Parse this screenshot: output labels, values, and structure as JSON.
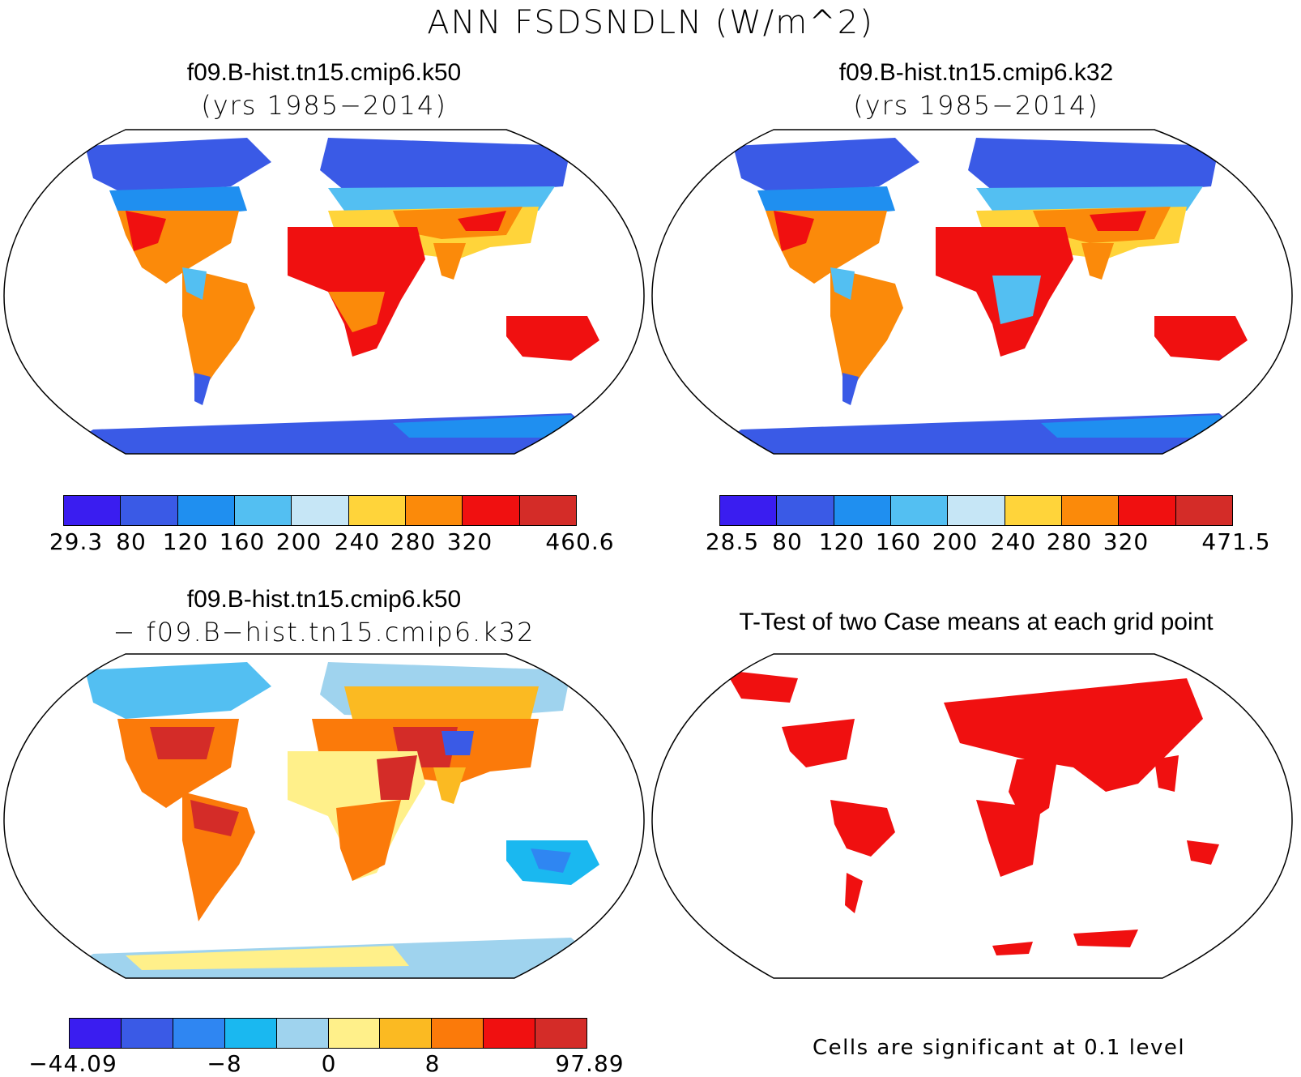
{
  "title": "ANN FSDSNDLN (W/m^2)",
  "panels": [
    {
      "id": "k50",
      "title_line1": "f09.B-hist.tn15.cmip6.k50",
      "title_line2": "(yrs 1985−2014)",
      "colors": [
        "#3a1df0",
        "#3a5ae6",
        "#1f8ff0",
        "#53bff2",
        "#c6e6f6",
        "#ffd43a",
        "#fb8a0a",
        "#f01010",
        "#d42c28"
      ],
      "labels": [
        "29.3",
        "80",
        "120",
        "160",
        "200",
        "240",
        "280",
        "320",
        "460.6"
      ]
    },
    {
      "id": "k32",
      "title_line1": "f09.B-hist.tn15.cmip6.k32",
      "title_line2": "(yrs 1985−2014)",
      "colors": [
        "#3a1df0",
        "#3a5ae6",
        "#1f8ff0",
        "#53bff2",
        "#c6e6f6",
        "#ffd43a",
        "#fb8a0a",
        "#f01010",
        "#d42c28"
      ],
      "labels": [
        "28.5",
        "80",
        "120",
        "160",
        "200",
        "240",
        "280",
        "320",
        "471.5"
      ]
    },
    {
      "id": "diff",
      "title_line1": "f09.B-hist.tn15.cmip6.k50",
      "title_line2": "− f09.B−hist.tn15.cmip6.k32",
      "colors": [
        "#3a1df0",
        "#3a5ae6",
        "#2f86f2",
        "#1ab8f0",
        "#9fd3ee",
        "#fff08a",
        "#fbba22",
        "#fb7a0a",
        "#f01010",
        "#d42c28"
      ],
      "labels": [
        "−44.09",
        "−8",
        "0",
        "8",
        "97.89"
      ]
    },
    {
      "id": "ttest",
      "title_line1": "T-Test of two Case means at each grid point",
      "note": "Cells are significant at 0.1 level",
      "sig_color": "#f01010"
    }
  ]
}
